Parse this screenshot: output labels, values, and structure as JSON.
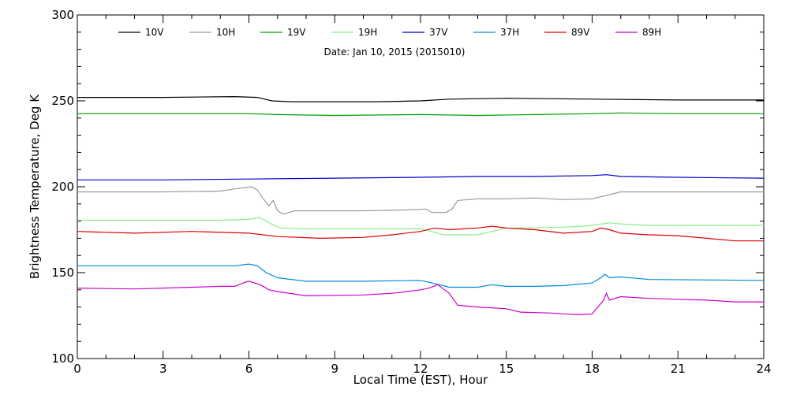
{
  "chart_data": {
    "type": "line",
    "subtitle": "Date: Jan 10, 2015 (2015010)",
    "xlabel": "Local Time (EST), Hour",
    "ylabel": "Brightness Temperature, Deg K",
    "xlim": [
      0,
      24
    ],
    "ylim": [
      100,
      300
    ],
    "x_ticks": [
      "0",
      "3",
      "6",
      "9",
      "12",
      "15",
      "18",
      "21",
      "24"
    ],
    "y_ticks": [
      "100",
      "150",
      "200",
      "250",
      "300"
    ],
    "grid": false,
    "legend_position": "top",
    "series": [
      {
        "name": "10V",
        "color": "#000000",
        "points": [
          [
            0,
            252
          ],
          [
            3,
            252
          ],
          [
            5.5,
            252.5
          ],
          [
            6.3,
            252
          ],
          [
            6.8,
            250
          ],
          [
            7.5,
            249.5
          ],
          [
            9,
            249.5
          ],
          [
            10.5,
            249.5
          ],
          [
            12,
            250
          ],
          [
            13,
            251
          ],
          [
            15,
            251.5
          ],
          [
            18,
            251
          ],
          [
            21,
            250.5
          ],
          [
            24,
            250.5
          ]
        ]
      },
      {
        "name": "10H",
        "color": "#999999",
        "points": [
          [
            0,
            197
          ],
          [
            3,
            197
          ],
          [
            5,
            197.5
          ],
          [
            5.6,
            199
          ],
          [
            6.1,
            200
          ],
          [
            6.3,
            198
          ],
          [
            6.5,
            193
          ],
          [
            6.7,
            189
          ],
          [
            6.85,
            192
          ],
          [
            7.0,
            186
          ],
          [
            7.2,
            184
          ],
          [
            7.6,
            186
          ],
          [
            8.5,
            186
          ],
          [
            10,
            186
          ],
          [
            11.5,
            186.5
          ],
          [
            12.2,
            187
          ],
          [
            12.4,
            185
          ],
          [
            12.9,
            185
          ],
          [
            13.1,
            187
          ],
          [
            13.3,
            192
          ],
          [
            14,
            193
          ],
          [
            15,
            193
          ],
          [
            16,
            193.5
          ],
          [
            17,
            192.5
          ],
          [
            18,
            193
          ],
          [
            18.5,
            195
          ],
          [
            19,
            197
          ],
          [
            21,
            197
          ],
          [
            24,
            197
          ]
        ]
      },
      {
        "name": "19V",
        "color": "#00a000",
        "points": [
          [
            0,
            242.5
          ],
          [
            3,
            242.5
          ],
          [
            6,
            242.5
          ],
          [
            7,
            242
          ],
          [
            9,
            241.5
          ],
          [
            12,
            242
          ],
          [
            14,
            241.5
          ],
          [
            16,
            242
          ],
          [
            18,
            242.5
          ],
          [
            19,
            243
          ],
          [
            21,
            242.5
          ],
          [
            24,
            242.5
          ]
        ]
      },
      {
        "name": "19H",
        "color": "#88ee88",
        "points": [
          [
            0,
            180.5
          ],
          [
            3,
            180.5
          ],
          [
            5,
            180.5
          ],
          [
            6,
            181
          ],
          [
            6.4,
            182
          ],
          [
            6.7,
            179
          ],
          [
            7.1,
            176
          ],
          [
            8,
            175.5
          ],
          [
            10,
            175.5
          ],
          [
            12,
            175.5
          ],
          [
            12.4,
            174
          ],
          [
            12.8,
            172
          ],
          [
            14,
            172
          ],
          [
            14.5,
            174
          ],
          [
            15,
            176
          ],
          [
            16,
            176
          ],
          [
            17,
            176.5
          ],
          [
            17.7,
            177
          ],
          [
            18.2,
            178
          ],
          [
            18.6,
            179
          ],
          [
            19.3,
            178
          ],
          [
            20,
            177.5
          ],
          [
            24,
            177.5
          ]
        ]
      },
      {
        "name": "37V",
        "color": "#0000cc",
        "points": [
          [
            0,
            204
          ],
          [
            3,
            204
          ],
          [
            6,
            204.5
          ],
          [
            9,
            205
          ],
          [
            12,
            205.5
          ],
          [
            14,
            206
          ],
          [
            16,
            206
          ],
          [
            18,
            206.5
          ],
          [
            18.5,
            207
          ],
          [
            19,
            206
          ],
          [
            21,
            205.5
          ],
          [
            24,
            205
          ]
        ]
      },
      {
        "name": "37H",
        "color": "#0088dd",
        "points": [
          [
            0,
            154
          ],
          [
            3,
            154
          ],
          [
            5.5,
            154
          ],
          [
            6,
            155
          ],
          [
            6.3,
            154
          ],
          [
            6.6,
            150
          ],
          [
            7,
            147
          ],
          [
            8,
            145
          ],
          [
            10,
            145
          ],
          [
            12,
            145.5
          ],
          [
            12.4,
            144
          ],
          [
            13,
            141.5
          ],
          [
            14,
            141.5
          ],
          [
            14.5,
            143
          ],
          [
            15,
            142
          ],
          [
            16,
            142
          ],
          [
            17,
            142.5
          ],
          [
            18,
            144
          ],
          [
            18.3,
            147
          ],
          [
            18.45,
            149
          ],
          [
            18.6,
            147
          ],
          [
            19,
            147.5
          ],
          [
            20,
            146
          ],
          [
            24,
            145.5
          ]
        ]
      },
      {
        "name": "89V",
        "color": "#dd0000",
        "points": [
          [
            0,
            174
          ],
          [
            2,
            173
          ],
          [
            4,
            174
          ],
          [
            6,
            173
          ],
          [
            7,
            171
          ],
          [
            8.5,
            170
          ],
          [
            10,
            170.5
          ],
          [
            11,
            172
          ],
          [
            12,
            174
          ],
          [
            12.5,
            176
          ],
          [
            13,
            175
          ],
          [
            14,
            176
          ],
          [
            14.5,
            177
          ],
          [
            15,
            176
          ],
          [
            16,
            175
          ],
          [
            17,
            173
          ],
          [
            18,
            174
          ],
          [
            18.3,
            176
          ],
          [
            18.6,
            175
          ],
          [
            19,
            173
          ],
          [
            20,
            172
          ],
          [
            21,
            171.5
          ],
          [
            22,
            170
          ],
          [
            23,
            168.5
          ],
          [
            24,
            168.5
          ]
        ]
      },
      {
        "name": "89H",
        "color": "#cc00cc",
        "points": [
          [
            0,
            141
          ],
          [
            2,
            140.5
          ],
          [
            4,
            141.5
          ],
          [
            5,
            142
          ],
          [
            5.5,
            142
          ],
          [
            5.8,
            144
          ],
          [
            6,
            145
          ],
          [
            6.4,
            143
          ],
          [
            6.7,
            140
          ],
          [
            7,
            139
          ],
          [
            8,
            136.5
          ],
          [
            10,
            137
          ],
          [
            11,
            138
          ],
          [
            12,
            140
          ],
          [
            12.3,
            141
          ],
          [
            12.6,
            143
          ],
          [
            13,
            138
          ],
          [
            13.3,
            131
          ],
          [
            14,
            130
          ],
          [
            15,
            129
          ],
          [
            15.5,
            127
          ],
          [
            16.5,
            126.5
          ],
          [
            17,
            126
          ],
          [
            17.5,
            125.5
          ],
          [
            18,
            126
          ],
          [
            18.2,
            130
          ],
          [
            18.4,
            134
          ],
          [
            18.5,
            138
          ],
          [
            18.6,
            134
          ],
          [
            19,
            136
          ],
          [
            20,
            135
          ],
          [
            21,
            134.5
          ],
          [
            22,
            134
          ],
          [
            23,
            133
          ],
          [
            24,
            133
          ]
        ]
      }
    ]
  }
}
